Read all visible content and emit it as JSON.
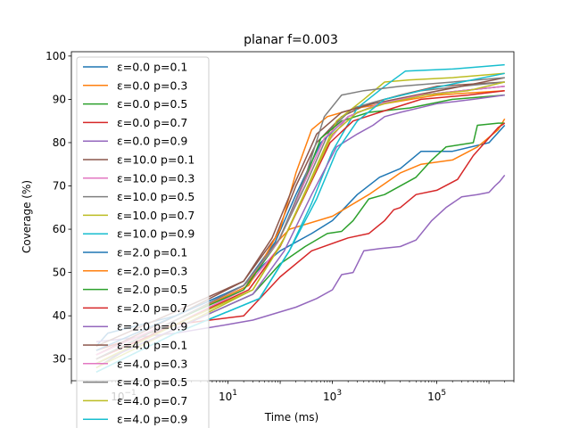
{
  "chart_data": {
    "type": "line",
    "title": "planar f=0.003",
    "xlabel": "Time (ms)",
    "ylabel": "Coverage (%)",
    "xscale": "log",
    "xlim": [
      0.01,
      3000000
    ],
    "ylim": [
      25,
      101
    ],
    "x_ticks": [
      {
        "value": 0.1,
        "base": "10",
        "exp": "−1"
      },
      {
        "value": 10,
        "base": "10",
        "exp": "1"
      },
      {
        "value": 1000,
        "base": "10",
        "exp": "3"
      },
      {
        "value": 100000,
        "base": "10",
        "exp": "5"
      }
    ],
    "y_ticks": [
      30,
      40,
      50,
      60,
      70,
      80,
      90,
      100
    ],
    "grid": false,
    "legend_position": "upper-left",
    "series": [
      {
        "name": "ε=0.0 p=0.1",
        "color": "#1f77b4",
        "points": [
          [
            0.03,
            33
          ],
          [
            0.05,
            36
          ],
          [
            1,
            40
          ],
          [
            20,
            47
          ],
          [
            50,
            52
          ],
          [
            100,
            55
          ],
          [
            400,
            59
          ],
          [
            1000,
            62
          ],
          [
            3000,
            68
          ],
          [
            8000,
            72
          ],
          [
            20000,
            74
          ],
          [
            50000,
            78
          ],
          [
            200000,
            78
          ],
          [
            1000000,
            80
          ],
          [
            2000000,
            84
          ]
        ]
      },
      {
        "name": "ε=0.0 p=0.3",
        "color": "#ff7f0e",
        "points": [
          [
            0.03,
            30
          ],
          [
            1,
            38
          ],
          [
            20,
            46
          ],
          [
            60,
            55
          ],
          [
            150,
            60
          ],
          [
            1000,
            63
          ],
          [
            5000,
            68
          ],
          [
            20000,
            73
          ],
          [
            50000,
            75
          ],
          [
            200000,
            76
          ],
          [
            600000,
            79
          ],
          [
            1500000,
            83
          ],
          [
            2000000,
            85.5
          ]
        ]
      },
      {
        "name": "ε=0.0 p=0.5",
        "color": "#2ca02c",
        "points": [
          [
            0.03,
            29
          ],
          [
            1,
            37
          ],
          [
            30,
            45
          ],
          [
            100,
            52
          ],
          [
            300,
            56
          ],
          [
            800,
            59
          ],
          [
            1500,
            59.5
          ],
          [
            2500,
            62
          ],
          [
            5000,
            67
          ],
          [
            10000,
            68
          ],
          [
            40000,
            72
          ],
          [
            80000,
            76
          ],
          [
            150000,
            79
          ],
          [
            500000,
            80
          ],
          [
            600000,
            84
          ],
          [
            1500000,
            84.5
          ],
          [
            2000000,
            84.5
          ]
        ]
      },
      {
        "name": "ε=0.0 p=0.7",
        "color": "#d62728",
        "points": [
          [
            0.03,
            32
          ],
          [
            1,
            38
          ],
          [
            20,
            40
          ],
          [
            100,
            49
          ],
          [
            400,
            55
          ],
          [
            2000,
            58
          ],
          [
            5000,
            59
          ],
          [
            10000,
            62
          ],
          [
            15000,
            64.5
          ],
          [
            20000,
            65
          ],
          [
            40000,
            68
          ],
          [
            100000,
            69
          ],
          [
            250000,
            71.5
          ],
          [
            500000,
            77
          ],
          [
            1500000,
            83.5
          ],
          [
            2000000,
            84.5
          ]
        ]
      },
      {
        "name": "ε=0.0 p=0.9",
        "color": "#9467bd",
        "points": [
          [
            0.03,
            34
          ],
          [
            1,
            36
          ],
          [
            10,
            38
          ],
          [
            30,
            39
          ],
          [
            200,
            42
          ],
          [
            500,
            44
          ],
          [
            1000,
            46
          ],
          [
            1500,
            49.5
          ],
          [
            2500,
            50
          ],
          [
            4000,
            55
          ],
          [
            8000,
            55.5
          ],
          [
            20000,
            56
          ],
          [
            40000,
            57.5
          ],
          [
            80000,
            62
          ],
          [
            150000,
            65
          ],
          [
            300000,
            67.5
          ],
          [
            600000,
            68
          ],
          [
            1000000,
            68.5
          ],
          [
            1300000,
            70
          ],
          [
            1600000,
            71
          ],
          [
            2000000,
            72.5
          ]
        ]
      },
      {
        "name": "ε=10.0 p=0.1",
        "color": "#8c564b",
        "points": [
          [
            0.03,
            31
          ],
          [
            1,
            40
          ],
          [
            20,
            48
          ],
          [
            80,
            58
          ],
          [
            200,
            70
          ],
          [
            500,
            80
          ],
          [
            1500,
            86
          ],
          [
            5000,
            89
          ],
          [
            20000,
            91
          ],
          [
            100000,
            93
          ],
          [
            2000000,
            94
          ]
        ]
      },
      {
        "name": "ε=10.0 p=0.3",
        "color": "#e377c2",
        "points": [
          [
            0.03,
            30
          ],
          [
            1,
            38
          ],
          [
            20,
            46
          ],
          [
            100,
            56
          ],
          [
            300,
            68
          ],
          [
            800,
            80
          ],
          [
            2000,
            86
          ],
          [
            8000,
            89
          ],
          [
            50000,
            91
          ],
          [
            300000,
            92
          ],
          [
            2000000,
            93
          ]
        ]
      },
      {
        "name": "ε=10.0 p=0.5",
        "color": "#7f7f7f",
        "points": [
          [
            0.03,
            28
          ],
          [
            1,
            39
          ],
          [
            20,
            47
          ],
          [
            90,
            57
          ],
          [
            300,
            70
          ],
          [
            900,
            83
          ],
          [
            2500,
            88
          ],
          [
            10000,
            90
          ],
          [
            50000,
            92
          ],
          [
            300000,
            93
          ],
          [
            2000000,
            94
          ]
        ]
      },
      {
        "name": "ε=10.0 p=0.7",
        "color": "#bcbd22",
        "points": [
          [
            0.03,
            28
          ],
          [
            1,
            37
          ],
          [
            30,
            46
          ],
          [
            120,
            58
          ],
          [
            400,
            72
          ],
          [
            1200,
            85
          ],
          [
            4000,
            90
          ],
          [
            10000,
            94
          ],
          [
            30000,
            94.5
          ],
          [
            200000,
            95
          ],
          [
            2000000,
            96
          ]
        ]
      },
      {
        "name": "ε=10.0 p=0.9",
        "color": "#17becf",
        "points": [
          [
            0.03,
            27
          ],
          [
            1,
            36
          ],
          [
            40,
            44
          ],
          [
            150,
            55
          ],
          [
            400,
            66
          ],
          [
            1000,
            78
          ],
          [
            3000,
            88
          ],
          [
            10000,
            93
          ],
          [
            25000,
            96.5
          ],
          [
            200000,
            97
          ],
          [
            2000000,
            98
          ]
        ]
      },
      {
        "name": "ε=2.0 p=0.1",
        "color": "#1f77b4",
        "points": [
          [
            0.03,
            32
          ],
          [
            1,
            40
          ],
          [
            20,
            47
          ],
          [
            80,
            57
          ],
          [
            200,
            68
          ],
          [
            600,
            80
          ],
          [
            2000,
            86
          ],
          [
            8000,
            89
          ],
          [
            50000,
            91
          ],
          [
            300000,
            92
          ],
          [
            2000000,
            93
          ]
        ]
      },
      {
        "name": "ε=2.0 p=0.3",
        "color": "#ff7f0e",
        "points": [
          [
            0.03,
            31
          ],
          [
            1,
            39
          ],
          [
            25,
            47
          ],
          [
            100,
            60
          ],
          [
            200,
            73
          ],
          [
            400,
            83
          ],
          [
            800,
            86
          ],
          [
            3000,
            88
          ],
          [
            10000,
            89
          ],
          [
            100000,
            91
          ],
          [
            2000000,
            92
          ]
        ]
      },
      {
        "name": "ε=2.0 p=0.5",
        "color": "#2ca02c",
        "points": [
          [
            0.03,
            30
          ],
          [
            1,
            39
          ],
          [
            20,
            46
          ],
          [
            90,
            57
          ],
          [
            250,
            69
          ],
          [
            600,
            81
          ],
          [
            1500,
            85
          ],
          [
            5000,
            87
          ],
          [
            30000,
            88
          ],
          [
            200000,
            90
          ],
          [
            2000000,
            91
          ]
        ]
      },
      {
        "name": "ε=2.0 p=0.7",
        "color": "#d62728",
        "points": [
          [
            0.03,
            30
          ],
          [
            1,
            38
          ],
          [
            25,
            46
          ],
          [
            100,
            56
          ],
          [
            300,
            68
          ],
          [
            900,
            80
          ],
          [
            2500,
            85
          ],
          [
            8000,
            87
          ],
          [
            50000,
            90
          ],
          [
            400000,
            91
          ],
          [
            2000000,
            92
          ]
        ]
      },
      {
        "name": "ε=2.0 p=0.9",
        "color": "#9467bd",
        "points": [
          [
            0.03,
            29
          ],
          [
            1,
            37
          ],
          [
            30,
            45
          ],
          [
            120,
            55
          ],
          [
            400,
            68
          ],
          [
            1200,
            79
          ],
          [
            3000,
            82
          ],
          [
            6000,
            84
          ],
          [
            10000,
            86
          ],
          [
            20000,
            87
          ],
          [
            100000,
            89
          ],
          [
            500000,
            90
          ],
          [
            2000000,
            91
          ]
        ]
      },
      {
        "name": "ε=4.0 p=0.1",
        "color": "#8c564b",
        "points": [
          [
            0.03,
            33
          ],
          [
            1,
            41
          ],
          [
            20,
            48
          ],
          [
            70,
            58
          ],
          [
            180,
            70
          ],
          [
            500,
            82
          ],
          [
            1500,
            87
          ],
          [
            6000,
            89
          ],
          [
            40000,
            91
          ],
          [
            300000,
            93
          ],
          [
            2000000,
            95
          ]
        ]
      },
      {
        "name": "ε=4.0 p=0.3",
        "color": "#e377c2",
        "points": [
          [
            0.03,
            31
          ],
          [
            1,
            39
          ],
          [
            20,
            47
          ],
          [
            90,
            57
          ],
          [
            250,
            69
          ],
          [
            700,
            81
          ],
          [
            2000,
            86
          ],
          [
            8000,
            89
          ],
          [
            50000,
            91
          ],
          [
            300000,
            92
          ],
          [
            2000000,
            93
          ]
        ]
      },
      {
        "name": "ε=4.0 p=0.5",
        "color": "#7f7f7f",
        "points": [
          [
            0.03,
            30
          ],
          [
            1,
            39
          ],
          [
            20,
            47
          ],
          [
            100,
            58
          ],
          [
            300,
            72
          ],
          [
            700,
            86
          ],
          [
            1500,
            91
          ],
          [
            4000,
            92
          ],
          [
            20000,
            93
          ],
          [
            200000,
            94
          ],
          [
            2000000,
            95
          ]
        ]
      },
      {
        "name": "ε=4.0 p=0.7",
        "color": "#bcbd22",
        "points": [
          [
            0.03,
            29
          ],
          [
            1,
            38
          ],
          [
            30,
            46
          ],
          [
            110,
            57
          ],
          [
            350,
            70
          ],
          [
            1000,
            82
          ],
          [
            3000,
            87
          ],
          [
            10000,
            89
          ],
          [
            60000,
            91
          ],
          [
            400000,
            92
          ],
          [
            2000000,
            94
          ]
        ]
      },
      {
        "name": "ε=4.0 p=0.9",
        "color": "#17becf",
        "points": [
          [
            0.03,
            27
          ],
          [
            1,
            36
          ],
          [
            40,
            44
          ],
          [
            150,
            55
          ],
          [
            500,
            67
          ],
          [
            1200,
            78
          ],
          [
            3000,
            85
          ],
          [
            10000,
            90
          ],
          [
            50000,
            92
          ],
          [
            300000,
            94
          ],
          [
            2000000,
            96
          ]
        ]
      }
    ]
  }
}
